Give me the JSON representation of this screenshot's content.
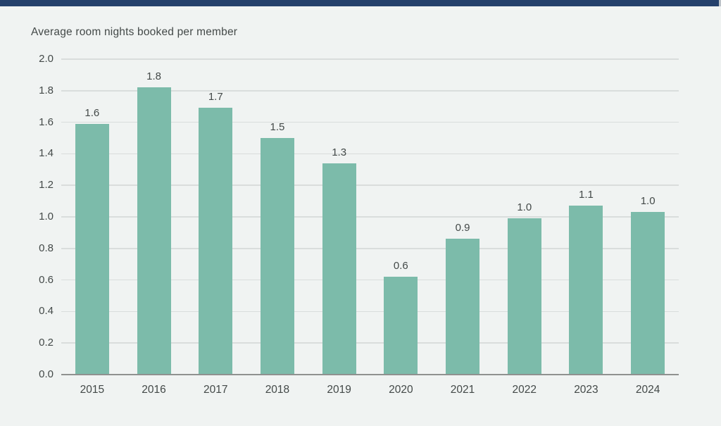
{
  "page": {
    "background": "#F0F3F2",
    "top_bar_color": "#24406B"
  },
  "chart_data": {
    "type": "bar",
    "title": "Average room nights booked per member",
    "categories": [
      "2015",
      "2016",
      "2017",
      "2018",
      "2019",
      "2020",
      "2021",
      "2022",
      "2023",
      "2024"
    ],
    "values": [
      1.59,
      1.82,
      1.69,
      1.5,
      1.34,
      0.62,
      0.86,
      0.99,
      1.07,
      1.03
    ],
    "bar_labels": [
      "1.6",
      "1.8",
      "1.7",
      "1.5",
      "1.3",
      "0.6",
      "0.9",
      "1.0",
      "1.1",
      "1.0"
    ],
    "xlabel": "",
    "ylabel": "",
    "ylim": [
      0,
      2.0
    ],
    "ytick_step": 0.2,
    "yticks": [
      "2.0",
      "1.8",
      "1.6",
      "1.4",
      "1.2",
      "1.0",
      "0.8",
      "0.6",
      "0.4",
      "0.2",
      "0.0"
    ],
    "grid": true,
    "legend": false,
    "bar_color": "#7CBBAA",
    "gridline_color": "#D9DDDC",
    "axis_line_color": "#8F918F",
    "text_color": "#434948"
  }
}
